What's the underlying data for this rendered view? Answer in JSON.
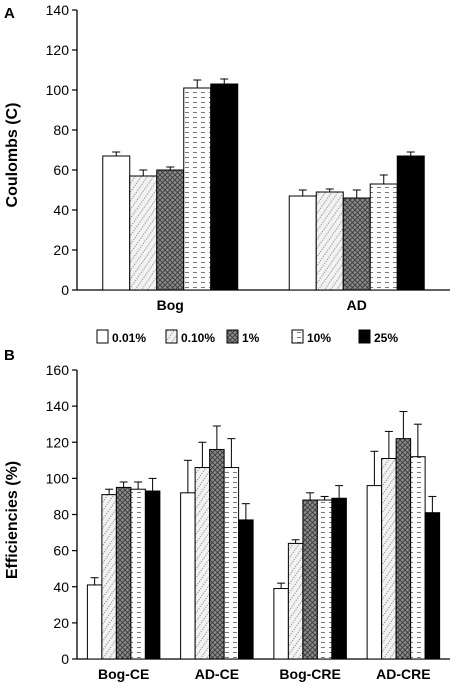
{
  "legend": [
    "0.01%",
    "0.10%",
    "1%",
    "10%",
    "25%"
  ],
  "chart_data": [
    {
      "panel": "A",
      "type": "bar",
      "ylabel": "Coulombs (C)",
      "ylim": [
        0,
        140
      ],
      "yticks": [
        0,
        20,
        40,
        60,
        80,
        100,
        120,
        140
      ],
      "categories": [
        "Bog",
        "AD"
      ],
      "series": [
        {
          "name": "0.01%",
          "values": [
            67,
            47
          ],
          "errors": [
            2,
            3
          ]
        },
        {
          "name": "0.10%",
          "values": [
            57,
            49
          ],
          "errors": [
            3,
            1.5
          ]
        },
        {
          "name": "1%",
          "values": [
            60,
            46
          ],
          "errors": [
            1.5,
            4
          ]
        },
        {
          "name": "10%",
          "values": [
            101,
            53
          ],
          "errors": [
            4,
            4.5
          ]
        },
        {
          "name": "25%",
          "values": [
            103,
            67
          ],
          "errors": [
            2.5,
            2
          ]
        }
      ],
      "grid": false
    },
    {
      "panel": "B",
      "type": "bar",
      "ylabel": "Efficiencies (%)",
      "ylim": [
        0,
        160
      ],
      "yticks": [
        0,
        20,
        40,
        60,
        80,
        100,
        120,
        140,
        160
      ],
      "categories": [
        "Bog-CE",
        "AD-CE",
        "Bog-CRE",
        "AD-CRE"
      ],
      "series": [
        {
          "name": "0.01%",
          "values": [
            41,
            92,
            39,
            96
          ],
          "errors": [
            4,
            18,
            3,
            19
          ]
        },
        {
          "name": "0.10%",
          "values": [
            91,
            106,
            64,
            111
          ],
          "errors": [
            3,
            14,
            2,
            15
          ]
        },
        {
          "name": "1%",
          "values": [
            95,
            116,
            88,
            122
          ],
          "errors": [
            3,
            13,
            4,
            15
          ]
        },
        {
          "name": "10%",
          "values": [
            94,
            106,
            88,
            112
          ],
          "errors": [
            4,
            16,
            2,
            18
          ]
        },
        {
          "name": "25%",
          "values": [
            93,
            77,
            89,
            81
          ],
          "errors": [
            7,
            9,
            7,
            9
          ]
        }
      ],
      "grid": false
    }
  ]
}
